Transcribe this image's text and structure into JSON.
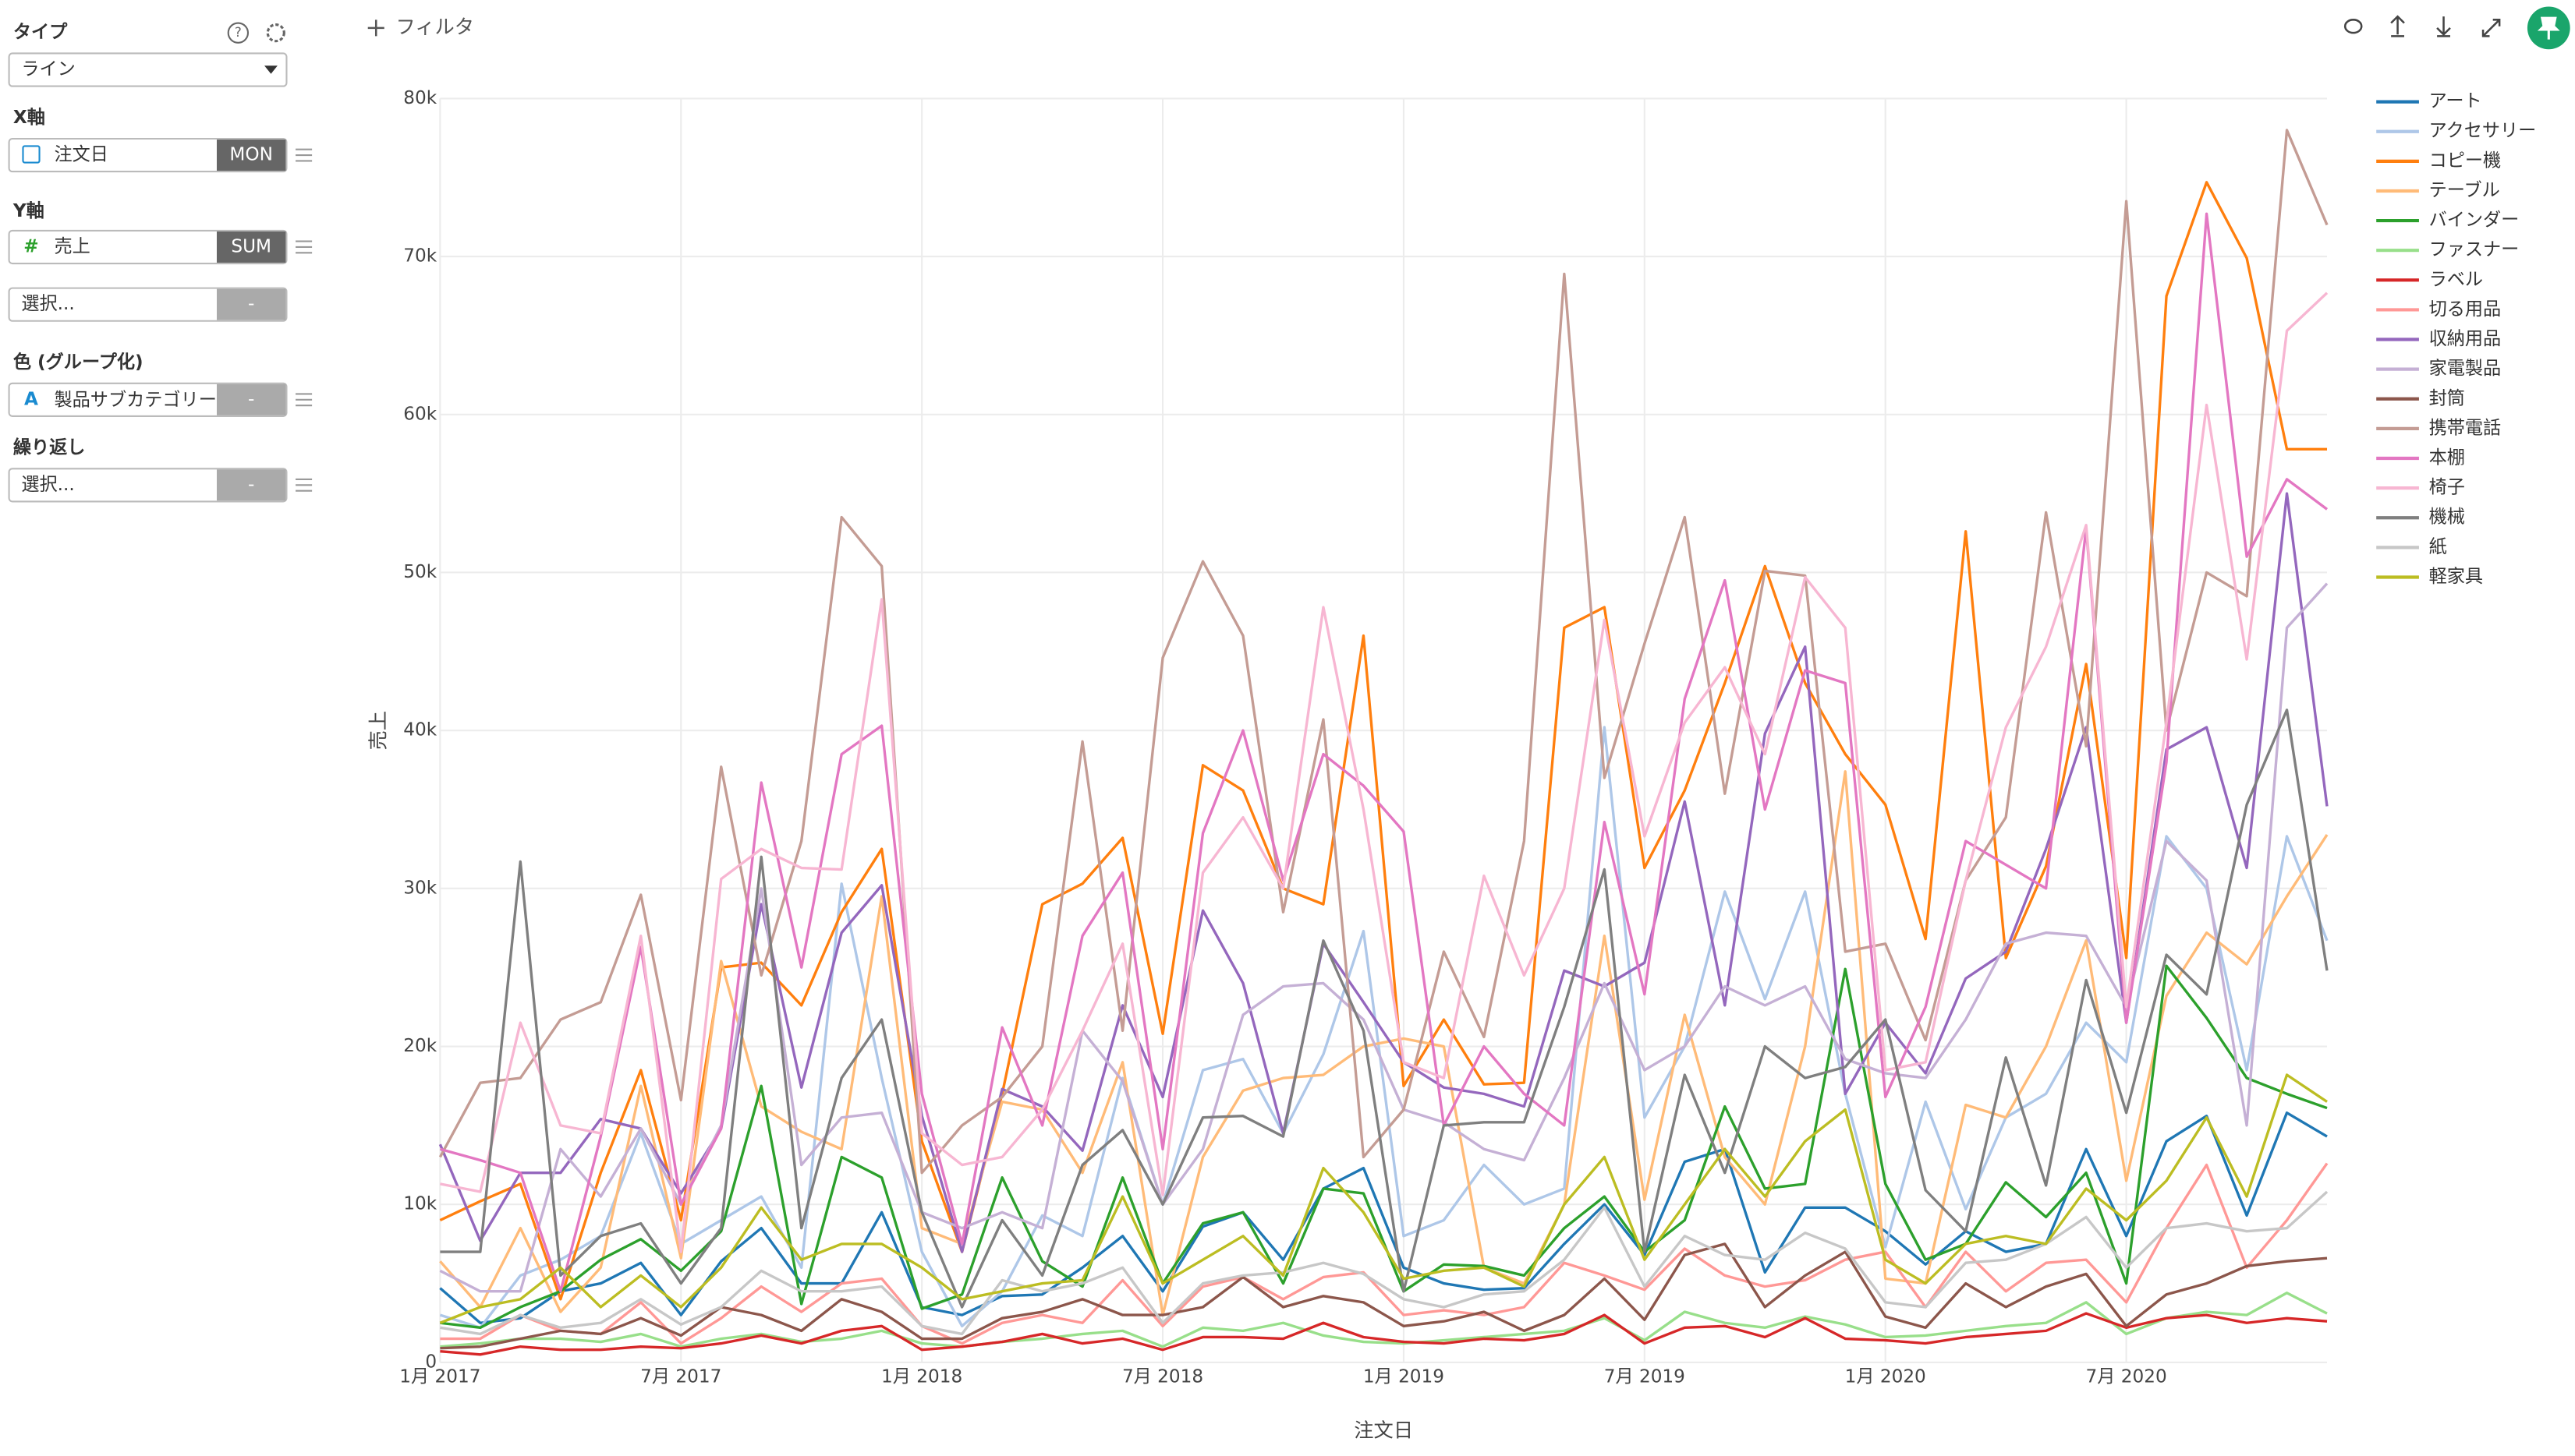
{
  "ui": {
    "type_label": "タイプ",
    "type_value": "ライン",
    "x_label": "X軸",
    "x_field": "注文日",
    "x_agg": "MON",
    "y_label": "Y軸",
    "y_field": "売上",
    "y_agg": "SUM",
    "y2_field": "選択...",
    "y2_agg": "-",
    "color_label": "色 (グループ化)",
    "color_field": "製品サブカテゴリー",
    "color_agg": "-",
    "repeat_label": "繰り返し",
    "repeat_field": "選択...",
    "repeat_agg": "-",
    "filter": "フィルタ"
  },
  "chart_data": {
    "type": "line",
    "x_label": "注文日",
    "y_label": "売上",
    "grid": true,
    "legend": "right",
    "x": [
      "2017-01",
      "2017-02",
      "2017-03",
      "2017-04",
      "2017-05",
      "2017-06",
      "2017-07",
      "2017-08",
      "2017-09",
      "2017-10",
      "2017-11",
      "2017-12",
      "2018-01",
      "2018-02",
      "2018-03",
      "2018-04",
      "2018-05",
      "2018-06",
      "2018-07",
      "2018-08",
      "2018-09",
      "2018-10",
      "2018-11",
      "2018-12",
      "2019-01",
      "2019-02",
      "2019-03",
      "2019-04",
      "2019-05",
      "2019-06",
      "2019-07",
      "2019-08",
      "2019-09",
      "2019-10",
      "2019-11",
      "2019-12",
      "2020-01",
      "2020-02",
      "2020-03",
      "2020-04",
      "2020-05",
      "2020-06",
      "2020-07",
      "2020-08",
      "2020-09",
      "2020-10",
      "2020-11",
      "2020-12"
    ],
    "xticks": [
      {
        "value": "2017-01",
        "label": "1月 2017"
      },
      {
        "value": "2017-07",
        "label": "7月 2017"
      },
      {
        "value": "2018-01",
        "label": "1月 2018"
      },
      {
        "value": "2018-07",
        "label": "7月 2018"
      },
      {
        "value": "2019-01",
        "label": "1月 2019"
      },
      {
        "value": "2019-07",
        "label": "7月 2019"
      },
      {
        "value": "2020-01",
        "label": "1月 2020"
      },
      {
        "value": "2020-07",
        "label": "7月 2020"
      }
    ],
    "ylim": [
      0,
      80000
    ],
    "yticks": [
      0,
      {
        "value": 10000,
        "label": "10k"
      },
      {
        "value": 20000,
        "label": "20k"
      },
      {
        "value": 30000,
        "label": "30k"
      },
      {
        "value": 40000,
        "label": "40k"
      },
      {
        "value": 50000,
        "label": "50k"
      },
      {
        "value": 60000,
        "label": "60k"
      },
      {
        "value": 70000,
        "label": "70k"
      },
      {
        "value": 80000,
        "label": "80k"
      }
    ],
    "series": [
      {
        "name": "アート",
        "color": "#1f77b4",
        "values": [
          4700,
          2500,
          2800,
          4500,
          5000,
          6300,
          3000,
          6400,
          8500,
          5000,
          5000,
          9500,
          3500,
          3000,
          4200,
          4300,
          6000,
          8000,
          4500,
          8600,
          9500,
          6500,
          11000,
          12300,
          6000,
          5000,
          4600,
          4700,
          7500,
          10000,
          6800,
          12700,
          13500,
          5700,
          9800,
          9800,
          8300,
          6200,
          8300,
          7000,
          7500,
          13500,
          8000,
          14000,
          15600,
          9300,
          15800,
          14300
        ]
      },
      {
        "name": "アクセサリー",
        "color": "#aec7e8",
        "values": [
          3000,
          2200,
          5500,
          6500,
          8000,
          14500,
          7500,
          9000,
          10500,
          6000,
          30300,
          18000,
          7000,
          2300,
          4500,
          9300,
          8000,
          18000,
          10000,
          18500,
          19200,
          14500,
          19500,
          27300,
          8000,
          9000,
          12500,
          10000,
          11000,
          40200,
          15500,
          20000,
          29800,
          23000,
          29800,
          17000,
          7300,
          16500,
          9700,
          15500,
          17000,
          21500,
          19000,
          33300,
          30000,
          18500,
          33300,
          26700
        ]
      },
      {
        "name": "コピー機",
        "color": "#ff7f0e",
        "values": [
          9000,
          10200,
          11300,
          4000,
          12000,
          18500,
          9000,
          25000,
          25300,
          22600,
          28500,
          32500,
          14000,
          7000,
          17000,
          29000,
          30300,
          33200,
          20800,
          37800,
          36200,
          30000,
          29000,
          46000,
          17500,
          21700,
          17600,
          17700,
          46500,
          47800,
          31300,
          36200,
          43000,
          50400,
          43000,
          38500,
          35300,
          26800,
          52600,
          25600,
          31400,
          44200,
          25600,
          67500,
          74700,
          69900,
          57800,
          57800
        ]
      },
      {
        "name": "テーブル",
        "color": "#ffbb78",
        "values": [
          6400,
          3500,
          8500,
          3200,
          6000,
          17500,
          6600,
          25400,
          16200,
          14600,
          13500,
          29500,
          8500,
          7500,
          16500,
          16000,
          12000,
          19000,
          3000,
          13000,
          17200,
          18000,
          18200,
          20000,
          20500,
          20000,
          6000,
          5000,
          10000,
          27000,
          10300,
          22000,
          13000,
          10000,
          20000,
          37400,
          5300,
          5000,
          16300,
          15500,
          20000,
          26700,
          11500,
          23200,
          27200,
          25200,
          29500,
          33400
        ]
      },
      {
        "name": "バインダー",
        "color": "#2ca02c",
        "values": [
          2500,
          2200,
          3500,
          4500,
          6500,
          7800,
          5800,
          8300,
          17500,
          3700,
          13000,
          11700,
          3400,
          4300,
          11700,
          6400,
          4800,
          11700,
          5000,
          8800,
          9500,
          5000,
          11000,
          10700,
          4500,
          6200,
          6100,
          5500,
          8500,
          10500,
          7000,
          9000,
          16200,
          11000,
          11300,
          24900,
          11300,
          6500,
          7500,
          11400,
          9200,
          12000,
          5000,
          25100,
          21800,
          18000,
          17000,
          16100
        ]
      },
      {
        "name": "ファスナー",
        "color": "#98df8a",
        "values": [
          1000,
          1200,
          1500,
          1500,
          1300,
          1800,
          1000,
          1500,
          1800,
          1300,
          1500,
          2000,
          1200,
          1000,
          1300,
          1500,
          1800,
          2000,
          1000,
          2200,
          2000,
          2500,
          1700,
          1300,
          1200,
          1400,
          1600,
          1800,
          2000,
          2800,
          1400,
          3200,
          2500,
          2200,
          2900,
          2400,
          1600,
          1700,
          2000,
          2300,
          2500,
          3800,
          1800,
          2800,
          3200,
          3000,
          4400,
          3100
        ]
      },
      {
        "name": "ラベル",
        "color": "#d62728",
        "values": [
          700,
          500,
          1000,
          800,
          800,
          1000,
          900,
          1200,
          1700,
          1200,
          2000,
          2300,
          800,
          1000,
          1300,
          1800,
          1200,
          1500,
          800,
          1600,
          1600,
          1500,
          2500,
          1600,
          1300,
          1200,
          1500,
          1400,
          1800,
          3000,
          1200,
          2200,
          2300,
          1600,
          2800,
          1500,
          1400,
          1200,
          1600,
          1800,
          2000,
          3100,
          2200,
          2800,
          3000,
          2500,
          2800,
          2600
        ]
      },
      {
        "name": "切る用品",
        "color": "#ff9896",
        "values": [
          1500,
          1500,
          3000,
          2000,
          1800,
          3800,
          1200,
          2800,
          4800,
          3200,
          5000,
          5300,
          2300,
          1200,
          2500,
          3000,
          2500,
          5200,
          2300,
          4800,
          5400,
          4000,
          5400,
          5700,
          3000,
          3300,
          3000,
          3500,
          6300,
          5500,
          4600,
          7200,
          5500,
          4800,
          5200,
          6500,
          7000,
          3500,
          7000,
          4500,
          6300,
          6500,
          3800,
          8500,
          12500,
          6000,
          9000,
          12600
        ]
      },
      {
        "name": "収納用品",
        "color": "#9467bd",
        "values": [
          13800,
          7700,
          12000,
          12000,
          15400,
          14800,
          10700,
          14800,
          29000,
          17400,
          27200,
          30200,
          15600,
          7000,
          17300,
          16200,
          13400,
          22600,
          16800,
          28600,
          24000,
          14500,
          26500,
          22800,
          19000,
          17400,
          17000,
          16200,
          24800,
          23800,
          25300,
          35500,
          22600,
          39800,
          45300,
          17000,
          21500,
          18300,
          24300,
          26000,
          32500,
          40200,
          21500,
          38800,
          40200,
          31300,
          55000,
          35200
        ]
      },
      {
        "name": "家電製品",
        "color": "#c5b0d5",
        "values": [
          5800,
          4500,
          4500,
          13500,
          10500,
          14800,
          10000,
          15000,
          30000,
          12500,
          15500,
          15800,
          9500,
          8500,
          9500,
          8500,
          21000,
          17800,
          10000,
          13500,
          22000,
          23800,
          24000,
          21700,
          16000,
          15200,
          13500,
          12800,
          18000,
          24000,
          18500,
          20000,
          23800,
          22600,
          23800,
          19200,
          18300,
          18000,
          21700,
          26500,
          27200,
          27000,
          22500,
          33000,
          30500,
          15000,
          46500,
          49300
        ]
      },
      {
        "name": "封筒",
        "color": "#8c564b",
        "values": [
          900,
          1000,
          1500,
          2000,
          1800,
          2800,
          1700,
          3500,
          3000,
          2000,
          4000,
          3200,
          1500,
          1500,
          2800,
          3200,
          4000,
          3000,
          3000,
          3500,
          5400,
          3500,
          4200,
          3800,
          2300,
          2600,
          3200,
          2000,
          3000,
          5300,
          2700,
          6800,
          7500,
          3500,
          5500,
          7000,
          2900,
          2200,
          5000,
          3500,
          4800,
          5600,
          2300,
          4300,
          5000,
          6100,
          6400,
          6600
        ]
      },
      {
        "name": "携帯電話",
        "color": "#c49c94",
        "values": [
          13000,
          17700,
          18000,
          21700,
          22800,
          29600,
          16600,
          37700,
          24500,
          33000,
          53500,
          50400,
          12000,
          15000,
          16800,
          20000,
          39300,
          21000,
          44600,
          50700,
          46000,
          28500,
          40700,
          13000,
          16000,
          26000,
          20600,
          33000,
          68900,
          37000,
          45500,
          53500,
          36000,
          50100,
          49800,
          26000,
          26500,
          20400,
          30500,
          34500,
          53800,
          39000,
          73500,
          40000,
          50000,
          48500,
          78000,
          72000
        ]
      },
      {
        "name": "本棚",
        "color": "#e377c2",
        "values": [
          13500,
          12800,
          12000,
          4500,
          14300,
          26300,
          10000,
          14800,
          36700,
          25000,
          38500,
          40300,
          17000,
          7500,
          21200,
          15000,
          27000,
          31000,
          13500,
          33500,
          40000,
          30500,
          38500,
          36500,
          33600,
          15000,
          20000,
          17000,
          15000,
          34200,
          23300,
          42000,
          49500,
          35000,
          43800,
          43000,
          16800,
          22500,
          33000,
          31500,
          30000,
          52800,
          21500,
          38000,
          72700,
          51000,
          55900,
          54000
        ]
      },
      {
        "name": "椅子",
        "color": "#f7b6d2",
        "values": [
          11300,
          10800,
          21500,
          15000,
          14500,
          27000,
          7000,
          30600,
          32500,
          31300,
          31200,
          48300,
          14500,
          12500,
          13000,
          16000,
          21000,
          26500,
          10600,
          31000,
          34500,
          30000,
          47800,
          35000,
          19000,
          18000,
          30800,
          24500,
          30000,
          47000,
          33300,
          40500,
          44000,
          38500,
          49700,
          46500,
          18500,
          19000,
          30500,
          40200,
          45300,
          53000,
          22500,
          40500,
          60600,
          44500,
          65300,
          67700
        ]
      },
      {
        "name": "機械",
        "color": "#7f7f7f",
        "values": [
          7000,
          7000,
          31700,
          5500,
          8000,
          8800,
          5000,
          8500,
          32000,
          8500,
          18000,
          21700,
          9500,
          3500,
          9000,
          5500,
          12500,
          14700,
          10000,
          15500,
          15600,
          14300,
          26700,
          21000,
          4500,
          15000,
          15200,
          15200,
          22500,
          31200,
          7000,
          18200,
          12000,
          20000,
          18000,
          18700,
          21700,
          10900,
          8300,
          19300,
          11200,
          24200,
          15800,
          25800,
          23300,
          35300,
          41300,
          24800
        ]
      },
      {
        "name": "紙",
        "color": "#c7c7c7",
        "values": [
          2200,
          1800,
          3000,
          2200,
          2500,
          4000,
          2400,
          3500,
          5800,
          4500,
          4500,
          4800,
          2300,
          1800,
          5200,
          4500,
          5000,
          6000,
          2500,
          5000,
          5500,
          5700,
          6300,
          5600,
          4000,
          3500,
          4300,
          4500,
          6500,
          9800,
          4800,
          8000,
          6800,
          6500,
          8200,
          7200,
          3800,
          3500,
          6300,
          6500,
          7500,
          9200,
          6000,
          8500,
          8800,
          8300,
          8500,
          10800
        ]
      },
      {
        "name": "軽家具",
        "color": "#bcbd22",
        "values": [
          2500,
          3500,
          4000,
          6000,
          3500,
          5500,
          3500,
          6000,
          9800,
          6500,
          7500,
          7500,
          6000,
          4000,
          4500,
          5000,
          5200,
          10500,
          5000,
          6500,
          8000,
          5500,
          12300,
          9500,
          5300,
          5800,
          6000,
          4800,
          10000,
          13000,
          6500,
          10000,
          13500,
          10500,
          14000,
          16000,
          6500,
          5000,
          7500,
          8000,
          7500,
          11000,
          9000,
          11500,
          15500,
          10500,
          18200,
          16500
        ]
      }
    ]
  }
}
